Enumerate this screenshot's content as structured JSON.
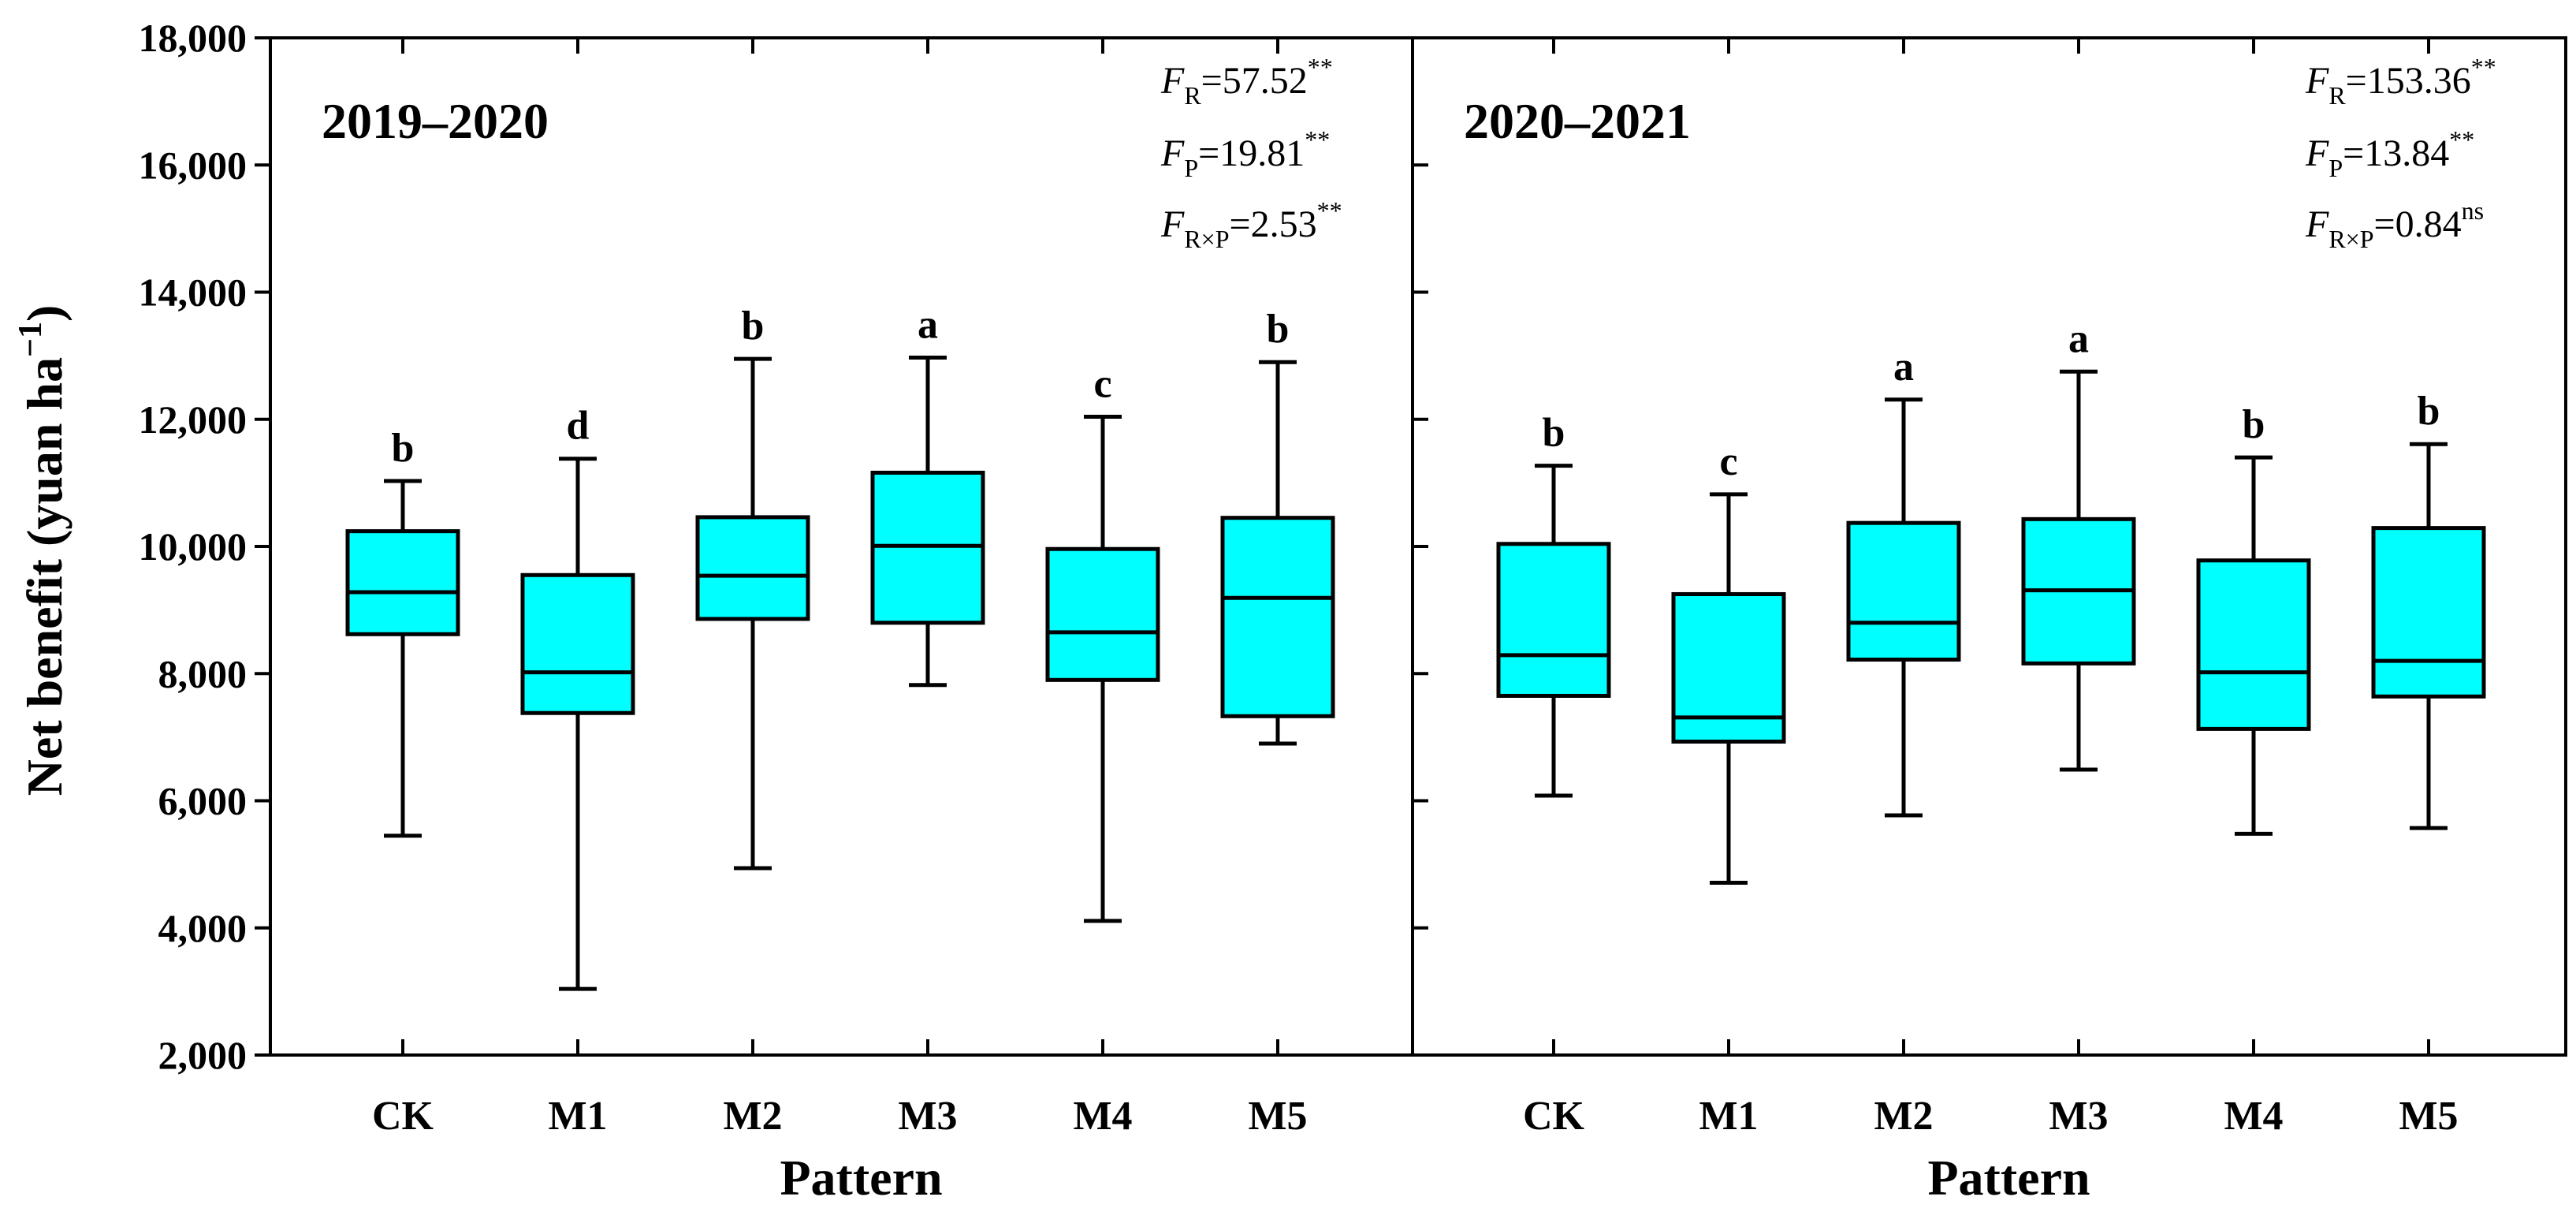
{
  "chart_data": {
    "type": "box",
    "ylabel": "Net benefit (yuan ha",
    "ylabel_sup": "−1",
    "ylabel_close": ")",
    "xlabel": "Pattern",
    "ylim": [
      2000,
      18000
    ],
    "yticks": [
      2000,
      4000,
      6000,
      8000,
      10000,
      12000,
      14000,
      16000,
      18000
    ],
    "ytick_labels": [
      "2,000",
      "4,000",
      "6,000",
      "8,000",
      "10,000",
      "12,000",
      "14,000",
      "16,000",
      "18,000"
    ],
    "box_color": "#00ffff",
    "panels": [
      {
        "title": "2019–2020",
        "categories": [
          "CK",
          "M1",
          "M2",
          "M3",
          "M4",
          "M5"
        ],
        "boxes": [
          {
            "category": "CK",
            "min": 5450,
            "q1": 8620,
            "median": 9280,
            "q3": 10240,
            "max": 11030,
            "letter": "b"
          },
          {
            "category": "M1",
            "min": 3040,
            "q1": 7380,
            "median": 8020,
            "q3": 9550,
            "max": 11380,
            "letter": "d"
          },
          {
            "category": "M2",
            "min": 4940,
            "q1": 8860,
            "median": 9540,
            "q3": 10460,
            "max": 12950,
            "letter": "b"
          },
          {
            "category": "M3",
            "min": 7820,
            "q1": 8800,
            "median": 10010,
            "q3": 11160,
            "max": 12970,
            "letter": "a"
          },
          {
            "category": "M4",
            "min": 4110,
            "q1": 7900,
            "median": 8650,
            "q3": 9960,
            "max": 12040,
            "letter": "c"
          },
          {
            "category": "M5",
            "min": 6900,
            "q1": 7330,
            "median": 9190,
            "q3": 10450,
            "max": 12900,
            "letter": "b"
          }
        ],
        "stats": [
          {
            "sym": "F",
            "sub": "R",
            "value": "=57.52",
            "sup": "**"
          },
          {
            "sym": "F",
            "sub": "P",
            "value": "=19.81",
            "sup": "**"
          },
          {
            "sym": "F",
            "sub": "R×P",
            "value": "=2.53",
            "sup": "**"
          }
        ]
      },
      {
        "title": "2020–2021",
        "categories": [
          "CK",
          "M1",
          "M2",
          "M3",
          "M4",
          "M5"
        ],
        "boxes": [
          {
            "category": "CK",
            "min": 6080,
            "q1": 7650,
            "median": 8290,
            "q3": 10040,
            "max": 11270,
            "letter": "b"
          },
          {
            "category": "M1",
            "min": 4710,
            "q1": 6930,
            "median": 7310,
            "q3": 9250,
            "max": 10820,
            "letter": "c"
          },
          {
            "category": "M2",
            "min": 5770,
            "q1": 8220,
            "median": 8800,
            "q3": 10370,
            "max": 12310,
            "letter": "a"
          },
          {
            "category": "M3",
            "min": 6490,
            "q1": 8160,
            "median": 9310,
            "q3": 10430,
            "max": 12750,
            "letter": "a"
          },
          {
            "category": "M4",
            "min": 5480,
            "q1": 7130,
            "median": 8020,
            "q3": 9780,
            "max": 11400,
            "letter": "b"
          },
          {
            "category": "M5",
            "min": 5570,
            "q1": 7640,
            "median": 8200,
            "q3": 10290,
            "max": 11610,
            "letter": "b"
          }
        ],
        "stats": [
          {
            "sym": "F",
            "sub": "R",
            "value": "=153.36",
            "sup": "**"
          },
          {
            "sym": "F",
            "sub": "P",
            "value": "=13.84",
            "sup": "**"
          },
          {
            "sym": "F",
            "sub": "R×P",
            "value": "=0.84",
            "sup": "ns"
          }
        ]
      }
    ]
  }
}
